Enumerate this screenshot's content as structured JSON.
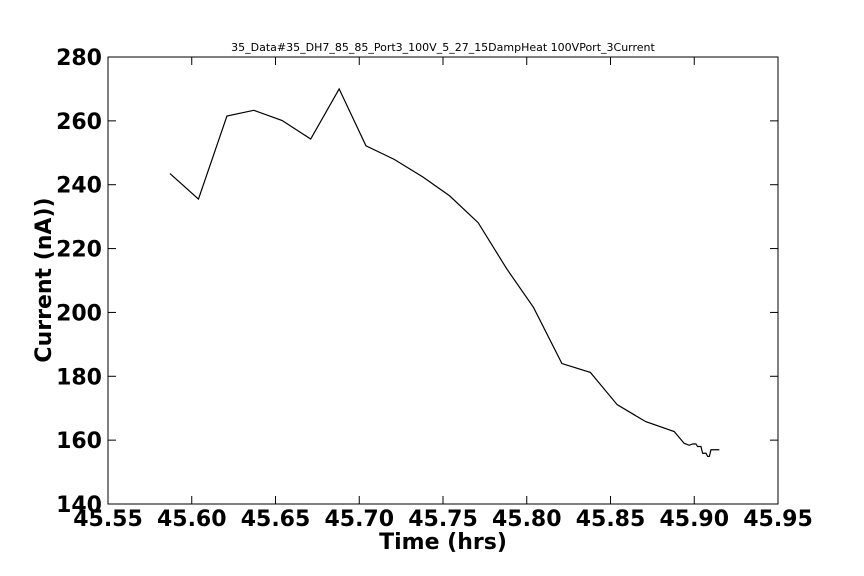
{
  "chart_data": {
    "type": "line",
    "title": "35_Data#35_DH7_85_85_Port3_100V_5_27_15DampHeat 100VPort_3Current",
    "xlabel": "Time (hrs)",
    "ylabel": "Current (nA))",
    "xlim": [
      45.55,
      45.95
    ],
    "ylim": [
      140,
      280
    ],
    "xticks": [
      45.55,
      45.6,
      45.65,
      45.7,
      45.75,
      45.8,
      45.85,
      45.9,
      45.95
    ],
    "xtick_labels": [
      "45.55",
      "45.60",
      "45.65",
      "45.70",
      "45.75",
      "45.80",
      "45.85",
      "45.90",
      "45.95"
    ],
    "yticks": [
      140,
      160,
      180,
      200,
      220,
      240,
      260,
      280
    ],
    "ytick_labels": [
      "140",
      "160",
      "180",
      "200",
      "220",
      "240",
      "260",
      "280"
    ],
    "grid": false,
    "line_color": "#000000",
    "series": [
      {
        "x": [
          45.587,
          45.604,
          45.621,
          45.637,
          45.654,
          45.671,
          45.688,
          45.704,
          45.721,
          45.738,
          45.754,
          45.771,
          45.788,
          45.804,
          45.821,
          45.838,
          45.854,
          45.871,
          45.888,
          45.894,
          45.897,
          45.899,
          45.901,
          45.902,
          45.904,
          45.905,
          45.907,
          45.908,
          45.909,
          45.91,
          45.911,
          45.912,
          45.913,
          45.915
        ],
        "y": [
          243.5,
          235.5,
          261.5,
          263.3,
          260.1,
          254.3,
          270.0,
          252.2,
          247.9,
          242.4,
          236.5,
          228.1,
          213.7,
          201.6,
          184.0,
          181.2,
          171.1,
          165.8,
          162.7,
          159.0,
          158.4,
          158.8,
          158.8,
          158.0,
          158.0,
          155.9,
          155.9,
          154.9,
          154.9,
          157.0,
          157.0,
          157.0,
          157.0,
          157.0
        ]
      }
    ]
  }
}
